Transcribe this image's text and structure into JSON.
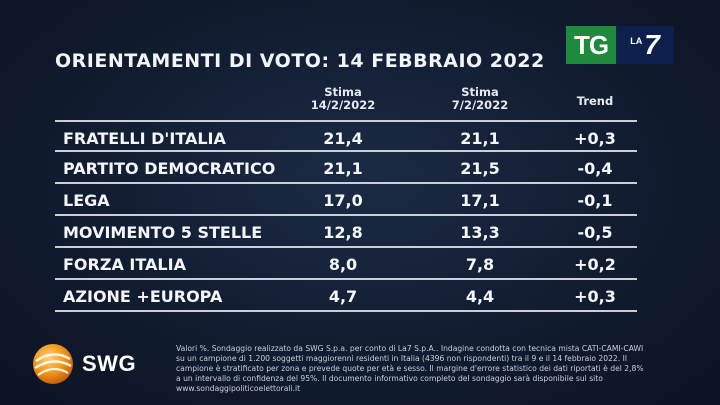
{
  "title": "ORIENTAMENTI DI VOTO: 14 FEBBRAIO 2022",
  "logo": {
    "tg": "TG",
    "la": "LA",
    "seven": "7"
  },
  "columns": {
    "estimate_current": "Stima\n14/2/2022",
    "estimate_current_l1": "Stima",
    "estimate_current_l2": "14/2/2022",
    "estimate_previous_l1": "Stima",
    "estimate_previous_l2": "7/2/2022",
    "trend": "Trend"
  },
  "rows": [
    {
      "party": "FRATELLI D'ITALIA",
      "v1": "21,4",
      "v2": "21,1",
      "trend": "+0,3"
    },
    {
      "party": "PARTITO DEMOCRATICO",
      "v1": "21,1",
      "v2": "21,5",
      "trend": "-0,4"
    },
    {
      "party": "LEGA",
      "v1": "17,0",
      "v2": "17,1",
      "trend": "-0,1"
    },
    {
      "party": "MOVIMENTO 5 STELLE",
      "v1": "12,8",
      "v2": "13,3",
      "trend": "-0,5"
    },
    {
      "party": "FORZA ITALIA",
      "v1": "8,0",
      "v2": "7,8",
      "trend": "+0,2"
    },
    {
      "party": "AZIONE +EUROPA",
      "v1": "4,7",
      "v2": "4,4",
      "trend": "+0,3"
    }
  ],
  "source": {
    "brand": "SWG",
    "note": "Valori %. Sondaggio realizzato da SWG S.p.a. per conto di La7 S.p.A.. Indagine condotta con tecnica mista CATI-CAMI-CAWI su un campione di 1.200 soggetti maggiorenni residenti in Italia (4396 non rispondenti) tra il 9 e il 14 febbraio 2022. Il campione è stratificato per zona e prevede quote per età e sesso. Il margine d'errore statistico dei dati riportati è del 2,8% a un intervallo di confidenza del 95%. Il documento informativo completo del sondaggio sarà disponibile sul sito www.sondaggipoliticoelettorali.it"
  },
  "chart_data": {
    "type": "table",
    "title": "ORIENTAMENTI DI VOTO: 14 FEBBRAIO 2022",
    "columns": [
      "Stima 14/2/2022",
      "Stima 7/2/2022",
      "Trend"
    ],
    "categories": [
      "FRATELLI D'ITALIA",
      "PARTITO DEMOCRATICO",
      "LEGA",
      "MOVIMENTO 5 STELLE",
      "FORZA ITALIA",
      "AZIONE +EUROPA"
    ],
    "series": [
      {
        "name": "Stima 14/2/2022",
        "values": [
          21.4,
          21.1,
          17.0,
          12.8,
          8.0,
          4.7
        ]
      },
      {
        "name": "Stima 7/2/2022",
        "values": [
          21.1,
          21.5,
          17.1,
          13.3,
          7.8,
          4.4
        ]
      },
      {
        "name": "Trend",
        "values": [
          0.3,
          -0.4,
          -0.1,
          -0.5,
          0.2,
          0.3
        ]
      }
    ]
  }
}
